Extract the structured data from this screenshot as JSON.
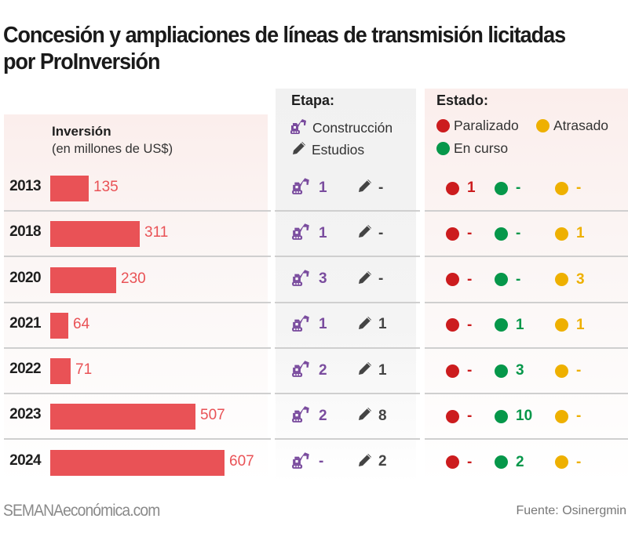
{
  "title": "Concesión y ampliaciones de líneas de transmisión licitadas por ProInversión",
  "investment_header": {
    "label": "Inversión",
    "unit": "(en millones de US$)"
  },
  "etapa_legend": {
    "title": "Etapa:",
    "items": [
      {
        "icon": "excavator-icon",
        "label": "Construcción",
        "color": "#7a4c9e"
      },
      {
        "icon": "pencil-icon",
        "label": "Estudios",
        "color": "#444444"
      }
    ]
  },
  "estado_legend": {
    "title": "Estado:",
    "items": [
      {
        "key": "paralizado",
        "label": "Paralizado",
        "color": "#cc1c1e"
      },
      {
        "key": "atrasado",
        "label": "Atrasado",
        "color": "#eeb000"
      },
      {
        "key": "en_curso",
        "label": "En curso",
        "color": "#06974a"
      }
    ]
  },
  "chart_data": {
    "type": "bar",
    "orientation": "horizontal",
    "title": "Concesión y ampliaciones de líneas de transmisión licitadas por ProInversión",
    "xlabel": "Inversión (en millones de US$)",
    "ylabel": "",
    "categories": [
      "2013",
      "2018",
      "2020",
      "2021",
      "2022",
      "2023",
      "2024"
    ],
    "values": [
      135,
      311,
      230,
      64,
      71,
      507,
      607
    ],
    "value_labels": [
      "135",
      "311",
      "230",
      "64",
      "71",
      "507",
      "607"
    ],
    "xlim": [
      0,
      607
    ],
    "grid": false,
    "bar_color": "#e95256",
    "table": {
      "columns": [
        "Construcción",
        "Estudios",
        "Paralizado",
        "En curso",
        "Atrasado"
      ],
      "rows": [
        {
          "year": "2013",
          "construccion": "1",
          "estudios": "-",
          "paralizado": "1",
          "en_curso": "-",
          "atrasado": "-"
        },
        {
          "year": "2018",
          "construccion": "1",
          "estudios": "-",
          "paralizado": "-",
          "en_curso": "-",
          "atrasado": "1"
        },
        {
          "year": "2020",
          "construccion": "3",
          "estudios": "-",
          "paralizado": "-",
          "en_curso": "-",
          "atrasado": "3"
        },
        {
          "year": "2021",
          "construccion": "1",
          "estudios": "1",
          "paralizado": "-",
          "en_curso": "1",
          "atrasado": "1"
        },
        {
          "year": "2022",
          "construccion": "2",
          "estudios": "1",
          "paralizado": "-",
          "en_curso": "3",
          "atrasado": "-"
        },
        {
          "year": "2023",
          "construccion": "2",
          "estudios": "8",
          "paralizado": "-",
          "en_curso": "10",
          "atrasado": "-"
        },
        {
          "year": "2024",
          "construccion": "-",
          "estudios": "2",
          "paralizado": "-",
          "en_curso": "2",
          "atrasado": "-"
        }
      ]
    }
  },
  "footer": {
    "brand": "SEMANAeconómica.com",
    "source": "Fuente: Osinergmin"
  }
}
